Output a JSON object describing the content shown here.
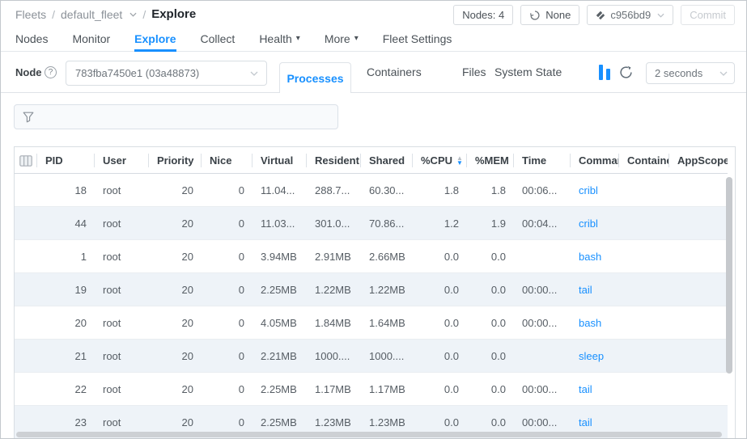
{
  "colors": {
    "accent": "#1890ff",
    "link": "#1890ff",
    "row_alt": "#eef3f8"
  },
  "breadcrumb": {
    "root": "Fleets",
    "separator": "/",
    "fleet": "default_fleet",
    "page": "Explore"
  },
  "header_actions": {
    "nodes_badge": "Nodes: 4",
    "restore_label": "None",
    "commit_id": "c956bd9",
    "commit_button": "Commit"
  },
  "nav": {
    "items": [
      {
        "label": "Nodes"
      },
      {
        "label": "Monitor"
      },
      {
        "label": "Explore",
        "active": true
      },
      {
        "label": "Collect"
      },
      {
        "label": "Health",
        "caret": true
      },
      {
        "label": "More",
        "caret": true
      },
      {
        "label": "Fleet Settings"
      }
    ]
  },
  "toolbar": {
    "node_label": "Node",
    "node_value": "783fba7450e1 (03a48873)",
    "tabs": [
      {
        "label": "Processes",
        "active": true
      },
      {
        "label": "Containers"
      },
      {
        "label": "Files"
      },
      {
        "label": "System State"
      }
    ],
    "refresh_interval": "2 seconds"
  },
  "icons": {
    "help": "question-circle",
    "pause": "pause-live-bars",
    "refresh": "circular-arrow",
    "restore": "history-circle-arrow",
    "commit": "git-commit-diamond",
    "filter": "funnel",
    "column_picker": "table-columns",
    "chevron": "chevron-down"
  },
  "table": {
    "columns": [
      {
        "key": "col-picker",
        "label": "",
        "align": "center"
      },
      {
        "key": "pid",
        "label": "PID",
        "align": "right"
      },
      {
        "key": "user",
        "label": "User",
        "align": "left"
      },
      {
        "key": "priority",
        "label": "Priority",
        "align": "right"
      },
      {
        "key": "nice",
        "label": "Nice",
        "align": "right"
      },
      {
        "key": "virtual",
        "label": "Virtual",
        "align": "left"
      },
      {
        "key": "resident",
        "label": "Resident",
        "align": "left"
      },
      {
        "key": "shared",
        "label": "Shared",
        "align": "left"
      },
      {
        "key": "cpu",
        "label": "%CPU",
        "align": "right",
        "sort": "desc"
      },
      {
        "key": "mem",
        "label": "%MEM",
        "align": "right"
      },
      {
        "key": "time",
        "label": "Time",
        "align": "left"
      },
      {
        "key": "command",
        "label": "Command",
        "align": "left",
        "link": true
      },
      {
        "key": "container",
        "label": "Container",
        "align": "left"
      },
      {
        "key": "appscope",
        "label": "AppScope",
        "align": "left"
      }
    ],
    "rows": [
      [
        "",
        "18",
        "root",
        "20",
        "0",
        "11.04...",
        "288.7...",
        "60.30...",
        "1.8",
        "1.8",
        "00:06...",
        "cribl",
        "",
        ""
      ],
      [
        "",
        "44",
        "root",
        "20",
        "0",
        "11.03...",
        "301.0...",
        "70.86...",
        "1.2",
        "1.9",
        "00:04...",
        "cribl",
        "",
        ""
      ],
      [
        "",
        "1",
        "root",
        "20",
        "0",
        "3.94MB",
        "2.91MB",
        "2.66MB",
        "0.0",
        "0.0",
        "",
        "bash",
        "",
        ""
      ],
      [
        "",
        "19",
        "root",
        "20",
        "0",
        "2.25MB",
        "1.22MB",
        "1.22MB",
        "0.0",
        "0.0",
        "00:00...",
        "tail",
        "",
        ""
      ],
      [
        "",
        "20",
        "root",
        "20",
        "0",
        "4.05MB",
        "1.84MB",
        "1.64MB",
        "0.0",
        "0.0",
        "00:00...",
        "bash",
        "",
        ""
      ],
      [
        "",
        "21",
        "root",
        "20",
        "0",
        "2.21MB",
        "1000....",
        "1000....",
        "0.0",
        "0.0",
        "",
        "sleep",
        "",
        ""
      ],
      [
        "",
        "22",
        "root",
        "20",
        "0",
        "2.25MB",
        "1.17MB",
        "1.17MB",
        "0.0",
        "0.0",
        "00:00...",
        "tail",
        "",
        ""
      ],
      [
        "",
        "23",
        "root",
        "20",
        "0",
        "2.25MB",
        "1.23MB",
        "1.23MB",
        "0.0",
        "0.0",
        "00:00...",
        "tail",
        "",
        ""
      ]
    ]
  }
}
